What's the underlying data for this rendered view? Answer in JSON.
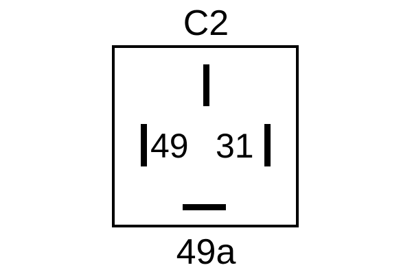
{
  "diagram": {
    "component_label": "C2",
    "bottom_terminal": "49a",
    "terminals": {
      "left": "49",
      "right": "31"
    }
  }
}
